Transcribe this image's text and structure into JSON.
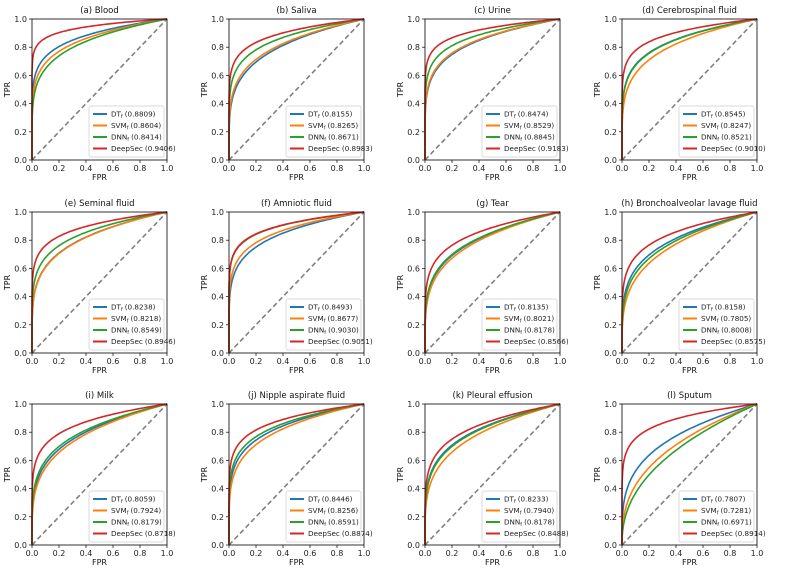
{
  "chart_data": [
    {
      "type": "line",
      "title": "(a) Blood",
      "xlabel": "FPR",
      "ylabel": "TPR",
      "xlim": [
        0,
        1
      ],
      "ylim": [
        0,
        1
      ],
      "legend": "bottom-right",
      "series": [
        {
          "name": "DT",
          "sub": "f",
          "label": "(0.8809)",
          "auc": 0.8809
        },
        {
          "name": "SVM",
          "sub": "f",
          "label": "(0.8604)",
          "auc": 0.8604
        },
        {
          "name": "DNN",
          "sub": "f",
          "label": "(0.8414)",
          "auc": 0.8414
        },
        {
          "name": "DeepSec",
          "sub": "",
          "label": "(0.9406)",
          "auc": 0.9406
        }
      ]
    },
    {
      "type": "line",
      "title": "(b) Saliva",
      "xlabel": "FPR",
      "ylabel": "TPR",
      "xlim": [
        0,
        1
      ],
      "ylim": [
        0,
        1
      ],
      "legend": "bottom-right",
      "series": [
        {
          "name": "DT",
          "sub": "f",
          "label": "(0.8155)",
          "auc": 0.8155
        },
        {
          "name": "SVM",
          "sub": "f",
          "label": "(0.8265)",
          "auc": 0.8265
        },
        {
          "name": "DNN",
          "sub": "f",
          "label": "(0.8671)",
          "auc": 0.8671
        },
        {
          "name": "DeepSec",
          "sub": "",
          "label": "(0.8983)",
          "auc": 0.8983
        }
      ]
    },
    {
      "type": "line",
      "title": "(c) Urine",
      "xlabel": "FPR",
      "ylabel": "TPR",
      "xlim": [
        0,
        1
      ],
      "ylim": [
        0,
        1
      ],
      "legend": "bottom-right",
      "series": [
        {
          "name": "DT",
          "sub": "f",
          "label": "(0.8474)",
          "auc": 0.8474
        },
        {
          "name": "SVM",
          "sub": "f",
          "label": "(0.8529)",
          "auc": 0.8529
        },
        {
          "name": "DNN",
          "sub": "f",
          "label": "(0.8845)",
          "auc": 0.8845
        },
        {
          "name": "DeepSec",
          "sub": "",
          "label": "(0.9183)",
          "auc": 0.9183
        }
      ]
    },
    {
      "type": "line",
      "title": "(d) Cerebrospinal fluid",
      "xlabel": "FPR",
      "ylabel": "TPR",
      "xlim": [
        0,
        1
      ],
      "ylim": [
        0,
        1
      ],
      "legend": "bottom-right",
      "series": [
        {
          "name": "DT",
          "sub": "f",
          "label": "(0.8545)",
          "auc": 0.8545
        },
        {
          "name": "SVM",
          "sub": "f",
          "label": "(0.8247)",
          "auc": 0.8247
        },
        {
          "name": "DNN",
          "sub": "f",
          "label": "(0.8521)",
          "auc": 0.8521
        },
        {
          "name": "DeepSec",
          "sub": "",
          "label": "(0.9010)",
          "auc": 0.901
        }
      ]
    },
    {
      "type": "line",
      "title": "(e) Seminal fluid",
      "xlabel": "FPR",
      "ylabel": "TPR",
      "xlim": [
        0,
        1
      ],
      "ylim": [
        0,
        1
      ],
      "legend": "bottom-right",
      "series": [
        {
          "name": "DT",
          "sub": "f",
          "label": "(0.8238)",
          "auc": 0.8238
        },
        {
          "name": "SVM",
          "sub": "f",
          "label": "(0.8218)",
          "auc": 0.8218
        },
        {
          "name": "DNN",
          "sub": "f",
          "label": "(0.8549)",
          "auc": 0.8549
        },
        {
          "name": "DeepSec",
          "sub": "",
          "label": "(0.8946)",
          "auc": 0.8946
        }
      ]
    },
    {
      "type": "line",
      "title": "(f) Amniotic fluid",
      "xlabel": "FPR",
      "ylabel": "TPR",
      "xlim": [
        0,
        1
      ],
      "ylim": [
        0,
        1
      ],
      "legend": "bottom-right",
      "series": [
        {
          "name": "DT",
          "sub": "f",
          "label": "(0.8493)",
          "auc": 0.8493
        },
        {
          "name": "SVM",
          "sub": "f",
          "label": "(0.8677)",
          "auc": 0.8677
        },
        {
          "name": "DNN",
          "sub": "f",
          "label": "(0.9030)",
          "auc": 0.903
        },
        {
          "name": "DeepSec",
          "sub": "",
          "label": "(0.9051)",
          "auc": 0.9051
        }
      ]
    },
    {
      "type": "line",
      "title": "(g) Tear",
      "xlabel": "FPR",
      "ylabel": "TPR",
      "xlim": [
        0,
        1
      ],
      "ylim": [
        0,
        1
      ],
      "legend": "bottom-right",
      "series": [
        {
          "name": "DT",
          "sub": "f",
          "label": "(0.8135)",
          "auc": 0.8135
        },
        {
          "name": "SVM",
          "sub": "f",
          "label": "(0.8021)",
          "auc": 0.8021
        },
        {
          "name": "DNN",
          "sub": "f",
          "label": "(0.8178)",
          "auc": 0.8178
        },
        {
          "name": "DeepSec",
          "sub": "",
          "label": "(0.8566)",
          "auc": 0.8566
        }
      ]
    },
    {
      "type": "line",
      "title": "(h) Bronchoalveolar lavage fluid",
      "xlabel": "FPR",
      "ylabel": "TPR",
      "xlim": [
        0,
        1
      ],
      "ylim": [
        0,
        1
      ],
      "legend": "bottom-right",
      "series": [
        {
          "name": "DT",
          "sub": "f",
          "label": "(0.8158)",
          "auc": 0.8158
        },
        {
          "name": "SVM",
          "sub": "f",
          "label": "(0.7805)",
          "auc": 0.7805
        },
        {
          "name": "DNN",
          "sub": "f",
          "label": "(0.8008)",
          "auc": 0.8008
        },
        {
          "name": "DeepSec",
          "sub": "",
          "label": "(0.8575)",
          "auc": 0.8575
        }
      ]
    },
    {
      "type": "line",
      "title": "(i) Milk",
      "xlabel": "FPR",
      "ylabel": "TPR",
      "xlim": [
        0,
        1
      ],
      "ylim": [
        0,
        1
      ],
      "legend": "bottom-right",
      "series": [
        {
          "name": "DT",
          "sub": "f",
          "label": "(0.8059)",
          "auc": 0.8059
        },
        {
          "name": "SVM",
          "sub": "f",
          "label": "(0.7924)",
          "auc": 0.7924
        },
        {
          "name": "DNN",
          "sub": "f",
          "label": "(0.8179)",
          "auc": 0.8179
        },
        {
          "name": "DeepSec",
          "sub": "",
          "label": "(0.8718)",
          "auc": 0.8718
        }
      ]
    },
    {
      "type": "line",
      "title": "(j) Nipple aspirate fluid",
      "xlabel": "FPR",
      "ylabel": "TPR",
      "xlim": [
        0,
        1
      ],
      "ylim": [
        0,
        1
      ],
      "legend": "bottom-right",
      "series": [
        {
          "name": "DT",
          "sub": "f",
          "label": "(0.8446)",
          "auc": 0.8446
        },
        {
          "name": "SVM",
          "sub": "f",
          "label": "(0.8256)",
          "auc": 0.8256
        },
        {
          "name": "DNN",
          "sub": "f",
          "label": "(0.8591)",
          "auc": 0.8591
        },
        {
          "name": "DeepSec",
          "sub": "",
          "label": "(0.8874)",
          "auc": 0.8874
        }
      ]
    },
    {
      "type": "line",
      "title": "(k) Pleural effusion",
      "xlabel": "FPR",
      "ylabel": "TPR",
      "xlim": [
        0,
        1
      ],
      "ylim": [
        0,
        1
      ],
      "legend": "bottom-right",
      "series": [
        {
          "name": "DT",
          "sub": "f",
          "label": "(0.8233)",
          "auc": 0.8233
        },
        {
          "name": "SVM",
          "sub": "f",
          "label": "(0.7940)",
          "auc": 0.794
        },
        {
          "name": "DNN",
          "sub": "f",
          "label": "(0.8178)",
          "auc": 0.8178
        },
        {
          "name": "DeepSec",
          "sub": "",
          "label": "(0.8488)",
          "auc": 0.8488
        }
      ]
    },
    {
      "type": "line",
      "title": "(l) Sputum",
      "xlabel": "FPR",
      "ylabel": "TPR",
      "xlim": [
        0,
        1
      ],
      "ylim": [
        0,
        1
      ],
      "legend": "bottom-right",
      "series": [
        {
          "name": "DT",
          "sub": "f",
          "label": "(0.7807)",
          "auc": 0.7807
        },
        {
          "name": "SVM",
          "sub": "f",
          "label": "(0.7281)",
          "auc": 0.7281
        },
        {
          "name": "DNN",
          "sub": "f",
          "label": "(0.6971)",
          "auc": 0.6971
        },
        {
          "name": "DeepSec",
          "sub": "",
          "label": "(0.8914)",
          "auc": 0.8914
        }
      ]
    }
  ],
  "ticks": [
    "0.0",
    "0.2",
    "0.4",
    "0.6",
    "0.8",
    "1.0"
  ],
  "colors": [
    "#1f77b4",
    "#ff7f0e",
    "#2ca02c",
    "#d62728"
  ],
  "diagonal_color": "#808080"
}
